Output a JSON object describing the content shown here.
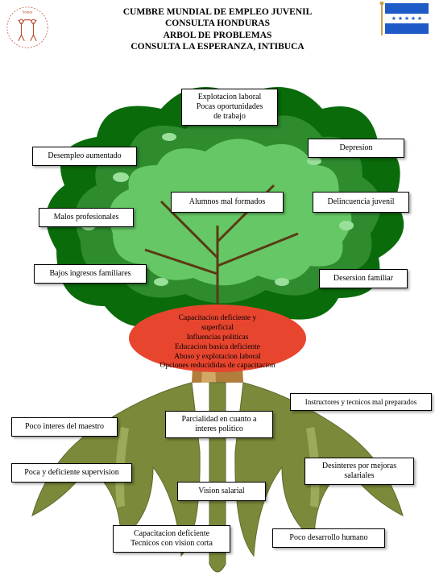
{
  "header": {
    "l1": "CUMBRE MUNDIAL DE EMPLEO JUVENIL",
    "l2": "CONSULTA HONDURAS",
    "l3": "ARBOL DE PROBLEMAS",
    "l4": "CONSULTA LA ESPERANZA, INTIBUCA"
  },
  "flag": {
    "band_color": "#1e5bc6",
    "mid_color": "#ffffff"
  },
  "logo": {
    "stroke": "#b94a2e"
  },
  "tree": {
    "crown_dark": "#0a6b0a",
    "crown_mid": "#2e8b2e",
    "crown_light": "#66c766",
    "trunk": "#b07d3a",
    "trunk_light": "#d2a866",
    "root": "#7a8a3a",
    "root_dark": "#5a6a2a",
    "oval_fill": "#e8452f"
  },
  "boxes": {
    "b1": "Explotacion laboral\nPocas oportunidades\nde trabajo",
    "b2": "Depresion",
    "b3": "Desempleo aumentado",
    "b4": "Alumnos mal formados",
    "b5": "Delincuencia juvenil",
    "b6": "Malos profesionales",
    "b7": "Bajos ingresos familiares",
    "b8": "Desersion familiar",
    "b9": "Instructores y tecnicos mal preparados",
    "b10": "Poco interes del maestro",
    "b11": "Parcialidad en cuanto a\ninteres politico",
    "b12": "Poca y deficiente supervision",
    "b13": "Desinteres por mejoras\nsalariales",
    "b14": "Vision salarial",
    "b15": "Capacitacion deficiente\nTecnicos con vision corta",
    "b16": "Poco desarrollo humano"
  },
  "trunk_text": "Capacitacion deficiente y\nsuperficial\nInfluencias politicas\nEducacion basica deficiente\nAbuso y explotacion laboral\nOpciones reducididas de capacitacion",
  "box_style": {
    "bg": "#ffffff",
    "border": "#000000",
    "font_size": 10
  }
}
